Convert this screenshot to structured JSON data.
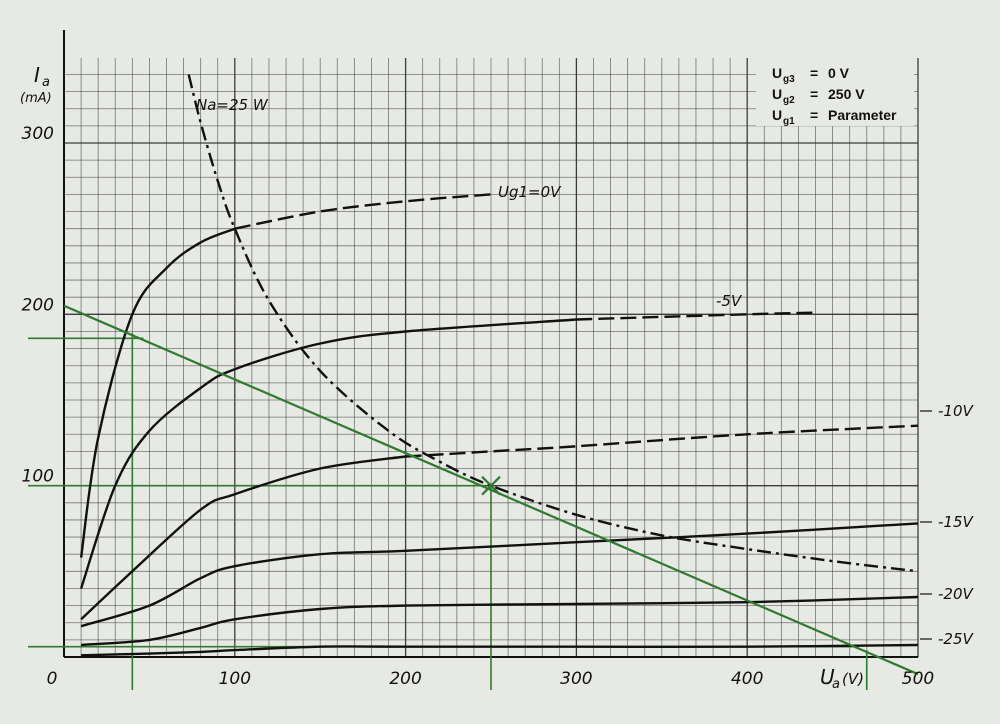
{
  "chart_data": {
    "type": "line",
    "ylabel": "I",
    "ylabel_sub": "a",
    "yunit": "(mA)",
    "xlabel": "U",
    "xlabel_sub": "a",
    "xunit": "(V)",
    "xlim": [
      0,
      500
    ],
    "ylim": [
      0,
      340
    ],
    "grid": true,
    "x_ticks": [
      0,
      100,
      200,
      300,
      400,
      500
    ],
    "y_ticks": [
      100,
      200,
      300
    ],
    "legend_placement": "top-right",
    "legend": [
      {
        "name": "U",
        "sub": "g3",
        "eq": "=",
        "value": "0 V"
      },
      {
        "name": "U",
        "sub": "g2",
        "eq": "=",
        "value": "250 V"
      },
      {
        "name": "U",
        "sub": "g1",
        "eq": "=",
        "value": "Parameter"
      }
    ],
    "series": [
      {
        "name": "Ug1=0V",
        "points": [
          [
            10,
            58
          ],
          [
            20,
            128
          ],
          [
            40,
            200
          ],
          [
            60,
            227
          ],
          [
            80,
            242
          ],
          [
            100,
            250
          ],
          [
            150,
            260
          ],
          [
            200,
            266
          ],
          [
            250,
            270
          ]
        ]
      },
      {
        "name": "-5V",
        "points": [
          [
            10,
            40
          ],
          [
            30,
            100
          ],
          [
            50,
            132
          ],
          [
            80,
            157
          ],
          [
            100,
            168
          ],
          [
            150,
            183
          ],
          [
            200,
            190
          ],
          [
            300,
            197
          ],
          [
            400,
            200
          ],
          [
            440,
            201
          ]
        ]
      },
      {
        "name": "-10V",
        "points": [
          [
            10,
            22
          ],
          [
            40,
            50
          ],
          [
            80,
            86
          ],
          [
            100,
            95
          ],
          [
            150,
            110
          ],
          [
            200,
            117
          ],
          [
            250,
            120
          ],
          [
            300,
            123
          ],
          [
            400,
            130
          ],
          [
            500,
            135
          ]
        ]
      },
      {
        "name": "-15V",
        "points": [
          [
            10,
            18
          ],
          [
            50,
            30
          ],
          [
            80,
            46
          ],
          [
            100,
            53
          ],
          [
            150,
            60
          ],
          [
            200,
            62
          ],
          [
            300,
            67
          ],
          [
            400,
            72
          ],
          [
            500,
            78
          ]
        ]
      },
      {
        "name": "-20V",
        "points": [
          [
            10,
            7
          ],
          [
            50,
            10
          ],
          [
            80,
            17
          ],
          [
            100,
            22
          ],
          [
            150,
            28
          ],
          [
            200,
            30
          ],
          [
            300,
            31
          ],
          [
            400,
            32
          ],
          [
            500,
            35
          ]
        ]
      },
      {
        "name": "-25V",
        "points": [
          [
            10,
            1
          ],
          [
            50,
            2
          ],
          [
            80,
            3
          ],
          [
            100,
            4
          ],
          [
            150,
            6
          ],
          [
            200,
            6
          ],
          [
            300,
            6
          ],
          [
            400,
            6
          ],
          [
            500,
            7
          ]
        ]
      }
    ],
    "power_curve": {
      "name": "Na=25 W",
      "points": [
        [
          73,
          340
        ],
        [
          80,
          312
        ],
        [
          90,
          278
        ],
        [
          100,
          250
        ],
        [
          120,
          208
        ],
        [
          150,
          167
        ],
        [
          190,
          132
        ],
        [
          220,
          114
        ],
        [
          250,
          100
        ],
        [
          300,
          83
        ],
        [
          350,
          71
        ],
        [
          400,
          63
        ],
        [
          450,
          56
        ],
        [
          500,
          50
        ]
      ]
    },
    "load_line": {
      "points": [
        [
          0,
          205
        ],
        [
          500,
          -10
        ]
      ]
    },
    "operating_point": [
      250,
      100
    ],
    "guide_lines": {
      "horizontal": [
        186,
        100,
        6
      ],
      "vertical": [
        40,
        250,
        470
      ]
    },
    "colors": {
      "curves": "#111111",
      "grid": "#2b2b2b",
      "load_line": "#2f7a2f",
      "background": "#e7e9e4"
    }
  }
}
